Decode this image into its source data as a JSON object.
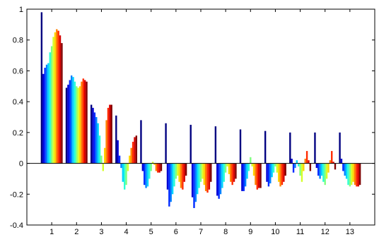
{
  "chart_data": {
    "type": "bar",
    "title": "",
    "xlabel": "",
    "ylabel": "",
    "xlim": [
      0,
      14
    ],
    "ylim": [
      -0.4,
      1
    ],
    "grid": false,
    "legend": "none",
    "colormap": "jet",
    "x_ticks": [
      "1",
      "2",
      "3",
      "4",
      "5",
      "6",
      "7",
      "8",
      "9",
      "10",
      "11",
      "12",
      "13"
    ],
    "y_ticks": [
      "-0.4",
      "-0.2",
      "0",
      "0.2",
      "0.4",
      "0.6",
      "0.8",
      "1"
    ],
    "y_tick_values": [
      -0.4,
      -0.2,
      0,
      0.2,
      0.4,
      0.6,
      0.8,
      1
    ],
    "groups": [
      {
        "category": "1",
        "values": [
          0.98,
          0.58,
          0.62,
          0.64,
          0.65,
          0.72,
          0.76,
          0.82,
          0.85,
          0.87,
          0.86,
          0.83,
          0.78
        ]
      },
      {
        "category": "2",
        "values": [
          0.49,
          0.51,
          0.54,
          0.57,
          0.56,
          0.53,
          0.5,
          0.49,
          0.5,
          0.53,
          0.55,
          0.54,
          0.53
        ]
      },
      {
        "category": "3",
        "values": [
          0.38,
          0.36,
          0.33,
          0.3,
          0.26,
          0.18,
          0.05,
          -0.05,
          0.1,
          0.28,
          0.36,
          0.38,
          0.38
        ]
      },
      {
        "category": "4",
        "values": [
          0.31,
          0.15,
          0.05,
          -0.03,
          -0.12,
          -0.17,
          -0.14,
          -0.05,
          0.05,
          0.1,
          0.14,
          0.17,
          0.18
        ]
      },
      {
        "category": "5",
        "values": [
          0.28,
          -0.05,
          -0.14,
          -0.16,
          -0.15,
          -0.1,
          -0.05,
          0.01,
          -0.01,
          -0.05,
          -0.06,
          -0.06,
          -0.05
        ]
      },
      {
        "category": "6",
        "values": [
          0.26,
          -0.17,
          -0.28,
          -0.25,
          -0.2,
          -0.15,
          -0.1,
          -0.08,
          -0.12,
          -0.16,
          -0.17,
          -0.12,
          -0.08
        ]
      },
      {
        "category": "7",
        "values": [
          0.25,
          -0.22,
          -0.29,
          -0.25,
          -0.2,
          -0.16,
          -0.12,
          -0.1,
          -0.14,
          -0.18,
          -0.19,
          -0.17,
          -0.12
        ]
      },
      {
        "category": "8",
        "values": [
          0.24,
          -0.21,
          -0.23,
          -0.2,
          -0.16,
          -0.12,
          -0.06,
          -0.02,
          -0.07,
          -0.12,
          -0.14,
          -0.12,
          -0.1
        ]
      },
      {
        "category": "9",
        "values": [
          0.22,
          -0.18,
          -0.18,
          -0.15,
          -0.1,
          -0.05,
          0.04,
          -0.02,
          -0.08,
          -0.14,
          -0.17,
          -0.16,
          -0.16
        ]
      },
      {
        "category": "10",
        "values": [
          0.21,
          -0.12,
          -0.15,
          -0.13,
          -0.09,
          -0.06,
          -0.02,
          -0.06,
          -0.12,
          -0.15,
          -0.14,
          -0.12,
          -0.08
        ]
      },
      {
        "category": "11",
        "values": [
          0.2,
          0.03,
          -0.06,
          -0.03,
          0.02,
          -0.02,
          -0.08,
          -0.12,
          -0.05,
          0.03,
          0.08,
          0.02,
          -0.05
        ]
      },
      {
        "category": "12",
        "values": [
          0.2,
          -0.03,
          -0.08,
          -0.1,
          -0.08,
          -0.12,
          -0.14,
          -0.1,
          -0.06,
          0.02,
          0.08,
          0.01,
          -0.04
        ]
      },
      {
        "category": "13",
        "values": [
          0.2,
          0.03,
          -0.05,
          -0.08,
          -0.1,
          -0.14,
          -0.15,
          -0.14,
          -0.12,
          -0.14,
          -0.15,
          -0.15,
          -0.14
        ]
      }
    ]
  }
}
